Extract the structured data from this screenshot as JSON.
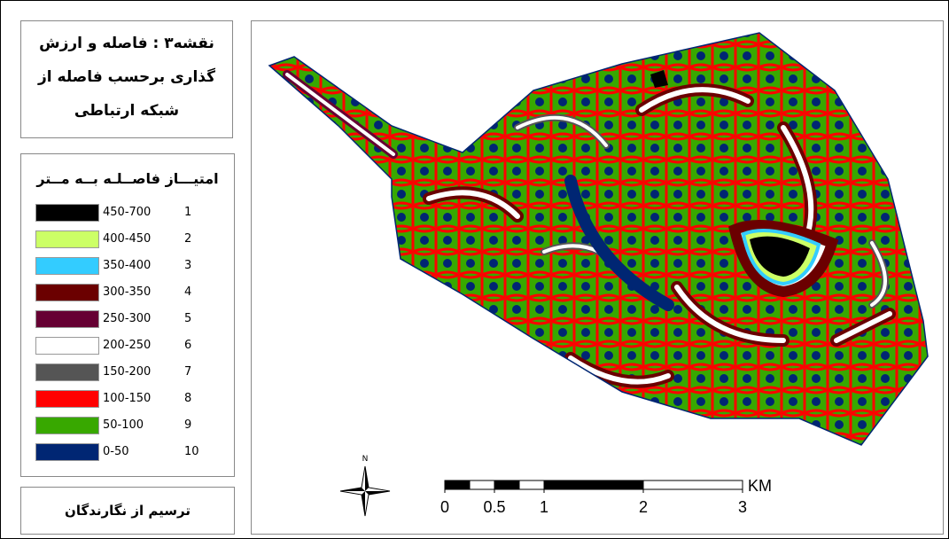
{
  "title": {
    "lines": [
      "نقشه۳ : فاصله و ارزش",
      "گذاری برحسب فاصله از",
      "شبکه ارتباطی"
    ]
  },
  "legend": {
    "title": "امتیـــاز فاصــلـه بــه مــتر",
    "items": [
      {
        "range": "450-700",
        "score": 1,
        "color": "#000000"
      },
      {
        "range": "400-450",
        "score": 2,
        "color": "#ccff66"
      },
      {
        "range": "350-400",
        "score": 3,
        "color": "#33ccff"
      },
      {
        "range": "300-350",
        "score": 4,
        "color": "#6b0000"
      },
      {
        "range": "250-300",
        "score": 5,
        "color": "#660033"
      },
      {
        "range": "200-250",
        "score": 6,
        "color": "#ffffff"
      },
      {
        "range": "150-200",
        "score": 7,
        "color": "#555555"
      },
      {
        "range": "100-150",
        "score": 8,
        "color": "#ff0000"
      },
      {
        "range": "50-100",
        "score": 9,
        "color": "#38a800"
      },
      {
        "range": "0-50",
        "score": 10,
        "color": "#002673"
      }
    ]
  },
  "credit": "ترسیم از نگارندگان",
  "north_arrow": {
    "label": "N"
  },
  "scale_bar": {
    "ticks": [
      0,
      0.5,
      1,
      2,
      3
    ],
    "unit": "KM"
  }
}
